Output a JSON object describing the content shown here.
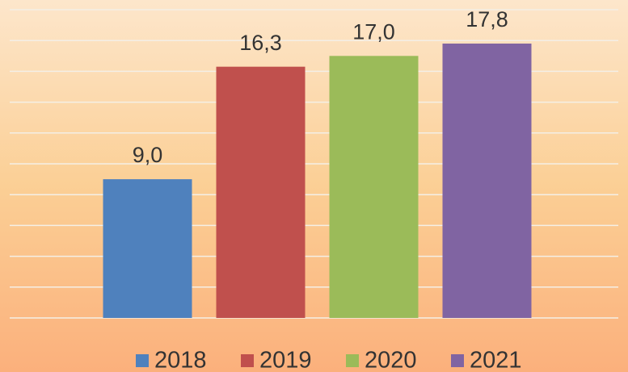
{
  "chart_data": {
    "type": "bar",
    "categories": [
      null
    ],
    "series": [
      {
        "name": "2018",
        "color": "#4f81bd",
        "values": [
          9.0
        ],
        "value_labels": [
          "9,0"
        ]
      },
      {
        "name": "2019",
        "color": "#c0504d",
        "values": [
          16.3
        ],
        "value_labels": [
          "16,3"
        ]
      },
      {
        "name": "2020",
        "color": "#9bbb59",
        "values": [
          17.0
        ],
        "value_labels": [
          "17,0"
        ]
      },
      {
        "name": "2021",
        "color": "#8064a2",
        "values": [
          17.8
        ],
        "value_labels": [
          "17,8"
        ]
      }
    ],
    "ylim": [
      0,
      20
    ],
    "yticks": [
      0,
      2,
      4,
      6,
      8,
      10,
      12,
      14,
      16,
      18,
      20
    ],
    "grid": true,
    "legend": "bottom"
  }
}
